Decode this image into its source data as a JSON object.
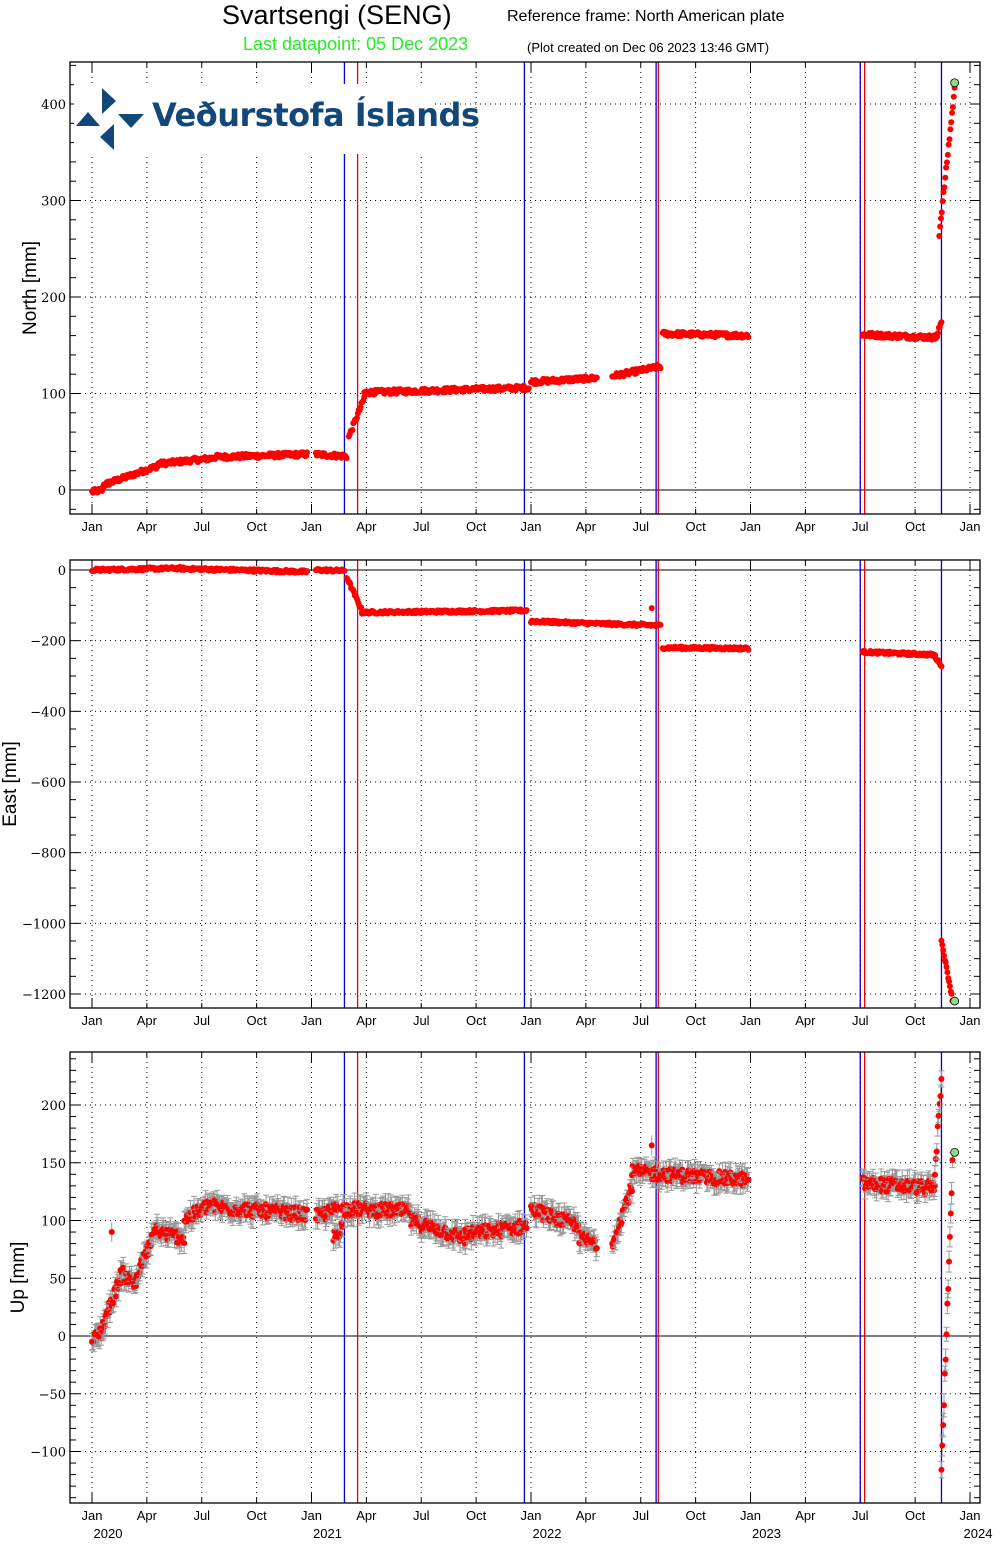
{
  "header": {
    "station_title": "Svartsengi (SENG)",
    "reference_frame": "Reference frame: North American plate",
    "last_datapoint": "Last datapoint: 05 Dec 2023",
    "plot_created": "(Plot created on Dec 06 2023 13:46 GMT)"
  },
  "logo": {
    "text": "Veðurstofa Íslands",
    "color": "#13477a",
    "icon": "vedur-pinwheel-icon"
  },
  "colors": {
    "data": "#ff0000",
    "errorbar": "#999999",
    "last_point": "#88dd88",
    "blue_line": "#0000dd",
    "red_line": "#ee0000",
    "grid": "#000000"
  },
  "chart_data": [
    {
      "type": "scatter",
      "title": "North component",
      "xlabel": "",
      "ylabel": "North [mm]",
      "ylim": [
        -25,
        445
      ],
      "yticks": [
        0,
        100,
        200,
        300,
        400
      ],
      "xticks": [
        "Jan",
        "Apr",
        "Jul",
        "Oct",
        "Jan",
        "Apr",
        "Jul",
        "Oct",
        "Jan",
        "Apr",
        "Jul",
        "Oct",
        "Jan",
        "Apr",
        "Jul",
        "Oct",
        "Jan"
      ],
      "grid": true,
      "segments": [
        {
          "t0": 2020.0,
          "t1": 2020.05,
          "v0": -2,
          "v1": 0
        },
        {
          "t0": 2020.05,
          "t1": 2020.3,
          "v0": 5,
          "v1": 25
        },
        {
          "t0": 2020.3,
          "t1": 2020.55,
          "v0": 27,
          "v1": 33
        },
        {
          "t0": 2020.55,
          "t1": 2020.98,
          "v0": 34,
          "v1": 37
        },
        {
          "t0": 2021.02,
          "t1": 2021.16,
          "v0": 37,
          "v1": 35
        },
        {
          "t0": 2021.17,
          "t1": 2021.24,
          "v0": 55,
          "v1": 95
        },
        {
          "t0": 2021.24,
          "t1": 2021.99,
          "v0": 101,
          "v1": 106
        },
        {
          "t0": 2022.0,
          "t1": 2022.3,
          "v0": 112,
          "v1": 116
        },
        {
          "t0": 2022.37,
          "t1": 2022.59,
          "v0": 118,
          "v1": 128
        },
        {
          "t0": 2022.6,
          "t1": 2022.99,
          "v0": 162,
          "v1": 160
        },
        {
          "t0": 2023.51,
          "t1": 2023.85,
          "v0": 161,
          "v1": 158
        },
        {
          "t0": 2023.85,
          "t1": 2023.87,
          "v0": 160,
          "v1": 175
        },
        {
          "t0": 2023.86,
          "t1": 2023.93,
          "v0": 265,
          "v1": 415
        }
      ],
      "last_point": {
        "t": 2023.93,
        "v": 422
      }
    },
    {
      "type": "scatter",
      "title": "East component",
      "xlabel": "",
      "ylabel": "East [mm]",
      "ylim": [
        -1240,
        40
      ],
      "yticks": [
        0,
        -200,
        -400,
        -600,
        -800,
        -1000,
        -1200
      ],
      "grid": true,
      "segments": [
        {
          "t0": 2020.0,
          "t1": 2020.4,
          "v0": 0,
          "v1": 5
        },
        {
          "t0": 2020.4,
          "t1": 2020.98,
          "v0": 4,
          "v1": -5
        },
        {
          "t0": 2021.02,
          "t1": 2021.15,
          "v0": 0,
          "v1": -2
        },
        {
          "t0": 2021.16,
          "t1": 2021.23,
          "v0": -20,
          "v1": -115
        },
        {
          "t0": 2021.23,
          "t1": 2021.98,
          "v0": -120,
          "v1": -115
        },
        {
          "t0": 2022.0,
          "t1": 2022.31,
          "v0": -145,
          "v1": -152
        },
        {
          "t0": 2022.32,
          "t1": 2022.59,
          "v0": -152,
          "v1": -157
        },
        {
          "t0": 2022.6,
          "t1": 2022.99,
          "v0": -220,
          "v1": -222
        },
        {
          "t0": 2023.51,
          "t1": 2023.84,
          "v0": -232,
          "v1": -240
        },
        {
          "t0": 2023.84,
          "t1": 2023.87,
          "v0": -245,
          "v1": -270
        },
        {
          "t0": 2023.87,
          "t1": 2023.92,
          "v0": -1050,
          "v1": -1215
        }
      ],
      "outliers": [
        {
          "t": 2022.55,
          "v": -108
        }
      ],
      "last_point": {
        "t": 2023.93,
        "v": -1220
      }
    },
    {
      "type": "scatter",
      "title": "Up component",
      "xlabel": "",
      "ylabel": "Up [mm]",
      "ylim": [
        -145,
        245
      ],
      "yticks": [
        -100,
        -50,
        0,
        50,
        100,
        150,
        200
      ],
      "grid": true,
      "errorbars": true,
      "segments": [
        {
          "t0": 2020.0,
          "t1": 2020.05,
          "v0": -5,
          "v1": 5
        },
        {
          "t0": 2020.05,
          "t1": 2020.13,
          "v0": 10,
          "v1": 50
        },
        {
          "t0": 2020.13,
          "t1": 2020.2,
          "v0": 55,
          "v1": 45
        },
        {
          "t0": 2020.2,
          "t1": 2020.3,
          "v0": 50,
          "v1": 95
        },
        {
          "t0": 2020.3,
          "t1": 2020.42,
          "v0": 90,
          "v1": 85
        },
        {
          "t0": 2020.42,
          "t1": 2020.55,
          "v0": 100,
          "v1": 115
        },
        {
          "t0": 2020.55,
          "t1": 2020.98,
          "v0": 112,
          "v1": 105
        },
        {
          "t0": 2021.02,
          "t1": 2021.12,
          "v0": 103,
          "v1": 110
        },
        {
          "t0": 2021.1,
          "t1": 2021.14,
          "v0": 85,
          "v1": 95
        },
        {
          "t0": 2021.14,
          "t1": 2021.45,
          "v0": 110,
          "v1": 108
        },
        {
          "t0": 2021.45,
          "t1": 2021.7,
          "v0": 100,
          "v1": 85
        },
        {
          "t0": 2021.7,
          "t1": 2021.98,
          "v0": 88,
          "v1": 95
        },
        {
          "t0": 2022.0,
          "t1": 2022.22,
          "v0": 110,
          "v1": 95
        },
        {
          "t0": 2022.22,
          "t1": 2022.3,
          "v0": 85,
          "v1": 80
        },
        {
          "t0": 2022.37,
          "t1": 2022.46,
          "v0": 80,
          "v1": 130
        },
        {
          "t0": 2022.46,
          "t1": 2022.99,
          "v0": 142,
          "v1": 135
        },
        {
          "t0": 2023.51,
          "t1": 2023.84,
          "v0": 132,
          "v1": 128
        },
        {
          "t0": 2023.84,
          "t1": 2023.87,
          "v0": 140,
          "v1": 225
        },
        {
          "t0": 2023.87,
          "t1": 2023.92,
          "v0": -120,
          "v1": 150
        }
      ],
      "outliers": [
        {
          "t": 2020.09,
          "v": 90
        },
        {
          "t": 2022.55,
          "v": 165
        }
      ],
      "last_point": {
        "t": 2023.93,
        "v": 159
      }
    }
  ],
  "event_lines": {
    "blue": [
      2021.15,
      2021.97,
      2022.57,
      2023.5,
      2023.87
    ],
    "red": [
      2021.21,
      2022.58,
      2023.52
    ]
  },
  "x_axis": {
    "month_labels": [
      "Jan",
      "Apr",
      "Jul",
      "Oct",
      "Jan",
      "Apr",
      "Jul",
      "Oct",
      "Jan",
      "Apr",
      "Jul",
      "Oct",
      "Jan",
      "Apr",
      "Jul",
      "Oct",
      "Jan"
    ],
    "year_labels": [
      "2020",
      "2021",
      "2022",
      "2023",
      "2024"
    ]
  }
}
